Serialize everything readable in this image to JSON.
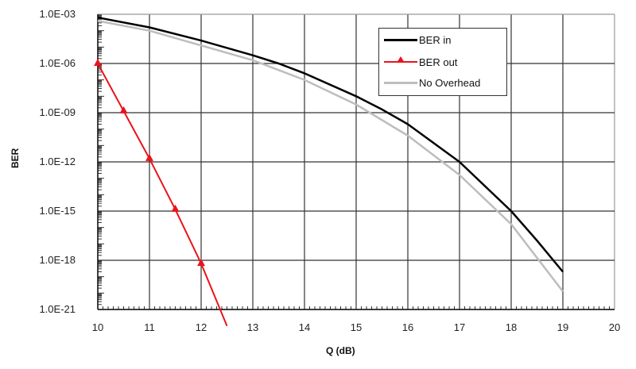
{
  "chart_data": {
    "type": "line",
    "title": "",
    "xlabel": "Q (dB)",
    "ylabel": "BER",
    "yscale": "log",
    "xlim": [
      10,
      20
    ],
    "ylim": [
      1e-21,
      0.001
    ],
    "grid": true,
    "legend_position": "upper right",
    "x_ticks": [
      "10",
      "11",
      "12",
      "13",
      "14",
      "15",
      "16",
      "17",
      "18",
      "19",
      "20"
    ],
    "y_ticks": [
      "1.0E-03",
      "1.0E-06",
      "1.0E-09",
      "1.0E-12",
      "1.0E-15",
      "1.0E-18",
      "1.0E-21"
    ],
    "series": [
      {
        "name": "BER in",
        "color": "#000000",
        "marker": "none",
        "x": [
          10,
          11,
          12,
          13,
          13.5,
          14,
          15,
          15.5,
          16,
          17,
          18,
          18.5,
          19
        ],
        "log10_y": [
          -3.2,
          -3.8,
          -4.6,
          -5.5,
          -6.0,
          -6.6,
          -8.0,
          -8.8,
          -9.7,
          -12.0,
          -15.0,
          -16.8,
          -18.7
        ]
      },
      {
        "name": "BER out",
        "color": "#e8141c",
        "marker": "triangle",
        "x": [
          10,
          10.5,
          11,
          11.5,
          12,
          12.5
        ],
        "log10_y": [
          -6.0,
          -8.9,
          -11.8,
          -14.9,
          -18.2,
          -22.0
        ]
      },
      {
        "name": "No Overhead",
        "color": "#bdbdbd",
        "marker": "none",
        "x": [
          10,
          11,
          12,
          13,
          14,
          15,
          16,
          17,
          18,
          19
        ],
        "log10_y": [
          -3.4,
          -4.0,
          -4.9,
          -5.8,
          -7.0,
          -8.5,
          -10.4,
          -12.8,
          -15.8,
          -19.9
        ]
      }
    ]
  },
  "axes": {
    "x_title": "Q (dB)",
    "y_title": "BER"
  },
  "legend": {
    "items": [
      {
        "label": "BER in",
        "color": "#000000"
      },
      {
        "label": "BER out",
        "color": "#e8141c"
      },
      {
        "label": "No Overhead",
        "color": "#bdbdbd"
      }
    ]
  }
}
